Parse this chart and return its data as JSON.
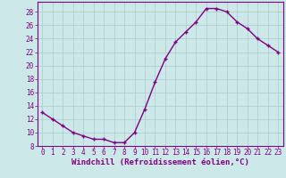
{
  "x": [
    0,
    1,
    2,
    3,
    4,
    5,
    6,
    7,
    8,
    9,
    10,
    11,
    12,
    13,
    14,
    15,
    16,
    17,
    18,
    19,
    20,
    21,
    22,
    23
  ],
  "y": [
    13,
    12,
    11,
    10,
    9.5,
    9,
    9,
    8.5,
    8.5,
    10,
    13.5,
    17.5,
    21,
    23.5,
    25,
    26.5,
    28.5,
    28.5,
    28,
    26.5,
    25.5,
    24,
    23,
    22
  ],
  "line_color": "#800080",
  "marker": "+",
  "marker_size": 3,
  "marker_edge_width": 1.0,
  "background_color": "#cce8e8",
  "grid_color": "#aacccc",
  "xlabel": "Windchill (Refroidissement éolien,°C)",
  "ylim": [
    8,
    29.5
  ],
  "xlim": [
    -0.5,
    23.5
  ],
  "yticks": [
    8,
    10,
    12,
    14,
    16,
    18,
    20,
    22,
    24,
    26,
    28
  ],
  "xticks": [
    0,
    1,
    2,
    3,
    4,
    5,
    6,
    7,
    8,
    9,
    10,
    11,
    12,
    13,
    14,
    15,
    16,
    17,
    18,
    19,
    20,
    21,
    22,
    23
  ],
  "tick_fontsize": 5.5,
  "xlabel_fontsize": 6.5,
  "line_width": 1.0,
  "spine_color": "#800080"
}
